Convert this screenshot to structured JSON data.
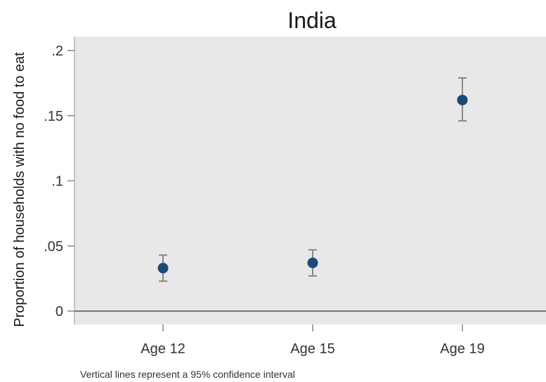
{
  "chart_data": {
    "type": "scatter",
    "title": "India",
    "xlabel": "",
    "ylabel": "Proportion of households with no food to eat",
    "categories": [
      "Age 12",
      "Age 15",
      "Age 19"
    ],
    "series": [
      {
        "values": [
          0.033,
          0.037,
          0.162
        ],
        "ci_lower": [
          0.023,
          0.027,
          0.146
        ],
        "ci_upper": [
          0.043,
          0.047,
          0.179
        ]
      }
    ],
    "ylim": [
      -0.01,
      0.21
    ],
    "yticks": [
      0,
      0.05,
      0.1,
      0.15,
      0.2
    ],
    "ytick_labels": [
      "0",
      ".05",
      ".1",
      ".15",
      ".2"
    ],
    "note": "Vertical lines represent a 95% confidence interval",
    "grid": false,
    "reference_line": 0,
    "colors": {
      "marker": "#1a4a75",
      "error_bar": "#888888",
      "plot_background": "#e8e8e8",
      "reference_line": "#777777"
    }
  }
}
